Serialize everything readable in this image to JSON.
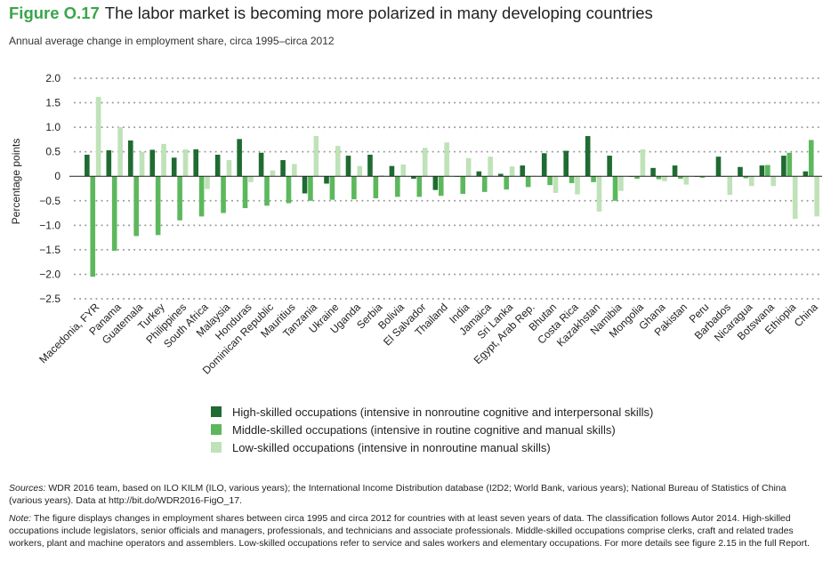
{
  "figure": {
    "label": "Figure O.17",
    "title": "The labor market is becoming more polarized in many developing countries",
    "subtitle": "Annual average change in employment share, circa 1995–circa 2012"
  },
  "colors": {
    "high": "#1f6b32",
    "middle": "#5cb85c",
    "low": "#bfe2b8",
    "grid": "#9a9a9a"
  },
  "chart_data": {
    "type": "bar",
    "ylabel": "Percentage points",
    "ylim": [
      -2.5,
      2.0
    ],
    "yticks": [
      "2.0",
      "1.5",
      "1.0",
      "0.5",
      "0",
      "−0.5",
      "−1.0",
      "−1.5",
      "−2.0",
      "−2.5"
    ],
    "grid": "horizontal dotted",
    "categories": [
      "Macedonia, FYR",
      "Panama",
      "Guatemala",
      "Turkey",
      "Philippines",
      "South Africa",
      "Malaysia",
      "Honduras",
      "Dominican Republic",
      "Mauritius",
      "Tanzania",
      "Ukraine",
      "Uganda",
      "Serbia",
      "Bolivia",
      "El Salvador",
      "Thailand",
      "India",
      "Jamaica",
      "Sri Lanka",
      "Egypt, Arab Rep.",
      "Bhutan",
      "Costa Rica",
      "Kazakhstan",
      "Namibia",
      "Mongolia",
      "Ghana",
      "Pakistan",
      "Peru",
      "Barbados",
      "Nicaragua",
      "Botswana",
      "Ethiopia",
      "China"
    ],
    "series": [
      {
        "name": "High-skilled occupations (intensive in nonroutine cognitive and interpersonal skills)",
        "values": [
          0.44,
          0.53,
          0.73,
          0.54,
          0.38,
          0.55,
          0.44,
          0.76,
          0.48,
          0.33,
          -0.35,
          -0.15,
          0.42,
          0.44,
          0.21,
          -0.05,
          -0.28,
          0.0,
          0.1,
          0.05,
          0.22,
          0.47,
          0.52,
          0.82,
          0.42,
          0.0,
          0.17,
          0.22,
          0.0,
          0.4,
          0.19,
          0.22,
          0.42,
          0.1
        ]
      },
      {
        "name": "Middle-skilled occupations (intensive in routine cognitive and manual skills)",
        "values": [
          -2.05,
          -1.52,
          -1.22,
          -1.2,
          -0.9,
          -0.82,
          -0.75,
          -0.65,
          -0.6,
          -0.55,
          -0.5,
          -0.48,
          -0.47,
          -0.45,
          -0.42,
          -0.42,
          -0.4,
          -0.36,
          -0.32,
          -0.27,
          -0.22,
          -0.18,
          -0.14,
          -0.12,
          -0.5,
          -0.05,
          -0.06,
          -0.05,
          -0.03,
          0.0,
          -0.04,
          0.23,
          0.48,
          0.74
        ]
      },
      {
        "name": "Low-skilled occupations (intensive in nonroutine manual skills)",
        "values": [
          1.62,
          1.0,
          0.5,
          0.66,
          0.55,
          -0.26,
          0.33,
          -0.12,
          0.12,
          0.25,
          0.82,
          0.62,
          0.21,
          0.02,
          0.24,
          0.58,
          0.69,
          0.37,
          0.4,
          0.2,
          0.01,
          -0.34,
          -0.37,
          -0.72,
          -0.3,
          0.55,
          -0.1,
          -0.17,
          0.0,
          -0.38,
          -0.2,
          -0.2,
          -0.87,
          -0.82
        ]
      }
    ]
  },
  "notes": {
    "sources_label": "Sources:",
    "sources_text": " WDR 2016 team, based on ILO KILM (ILO, various years); the International Income Distribution database (I2D2; World Bank, various years); National Bureau of Statistics of China (various years). Data at http://bit.do/WDR2016-FigO_17.",
    "note_label": "Note:",
    "note_text": " The figure displays changes in employment shares between circa 1995 and circa 2012 for countries with at least seven years of data. The classification follows Autor 2014. High-skilled occupations include legislators, senior officials and managers, professionals, and technicians and associate professionals. Middle-skilled occupations comprise clerks, craft and related trades workers, plant and machine operators and assemblers. Low-skilled occupations refer to service and sales workers and elementary occupations. For more details see figure 2.15 in the full Report."
  }
}
